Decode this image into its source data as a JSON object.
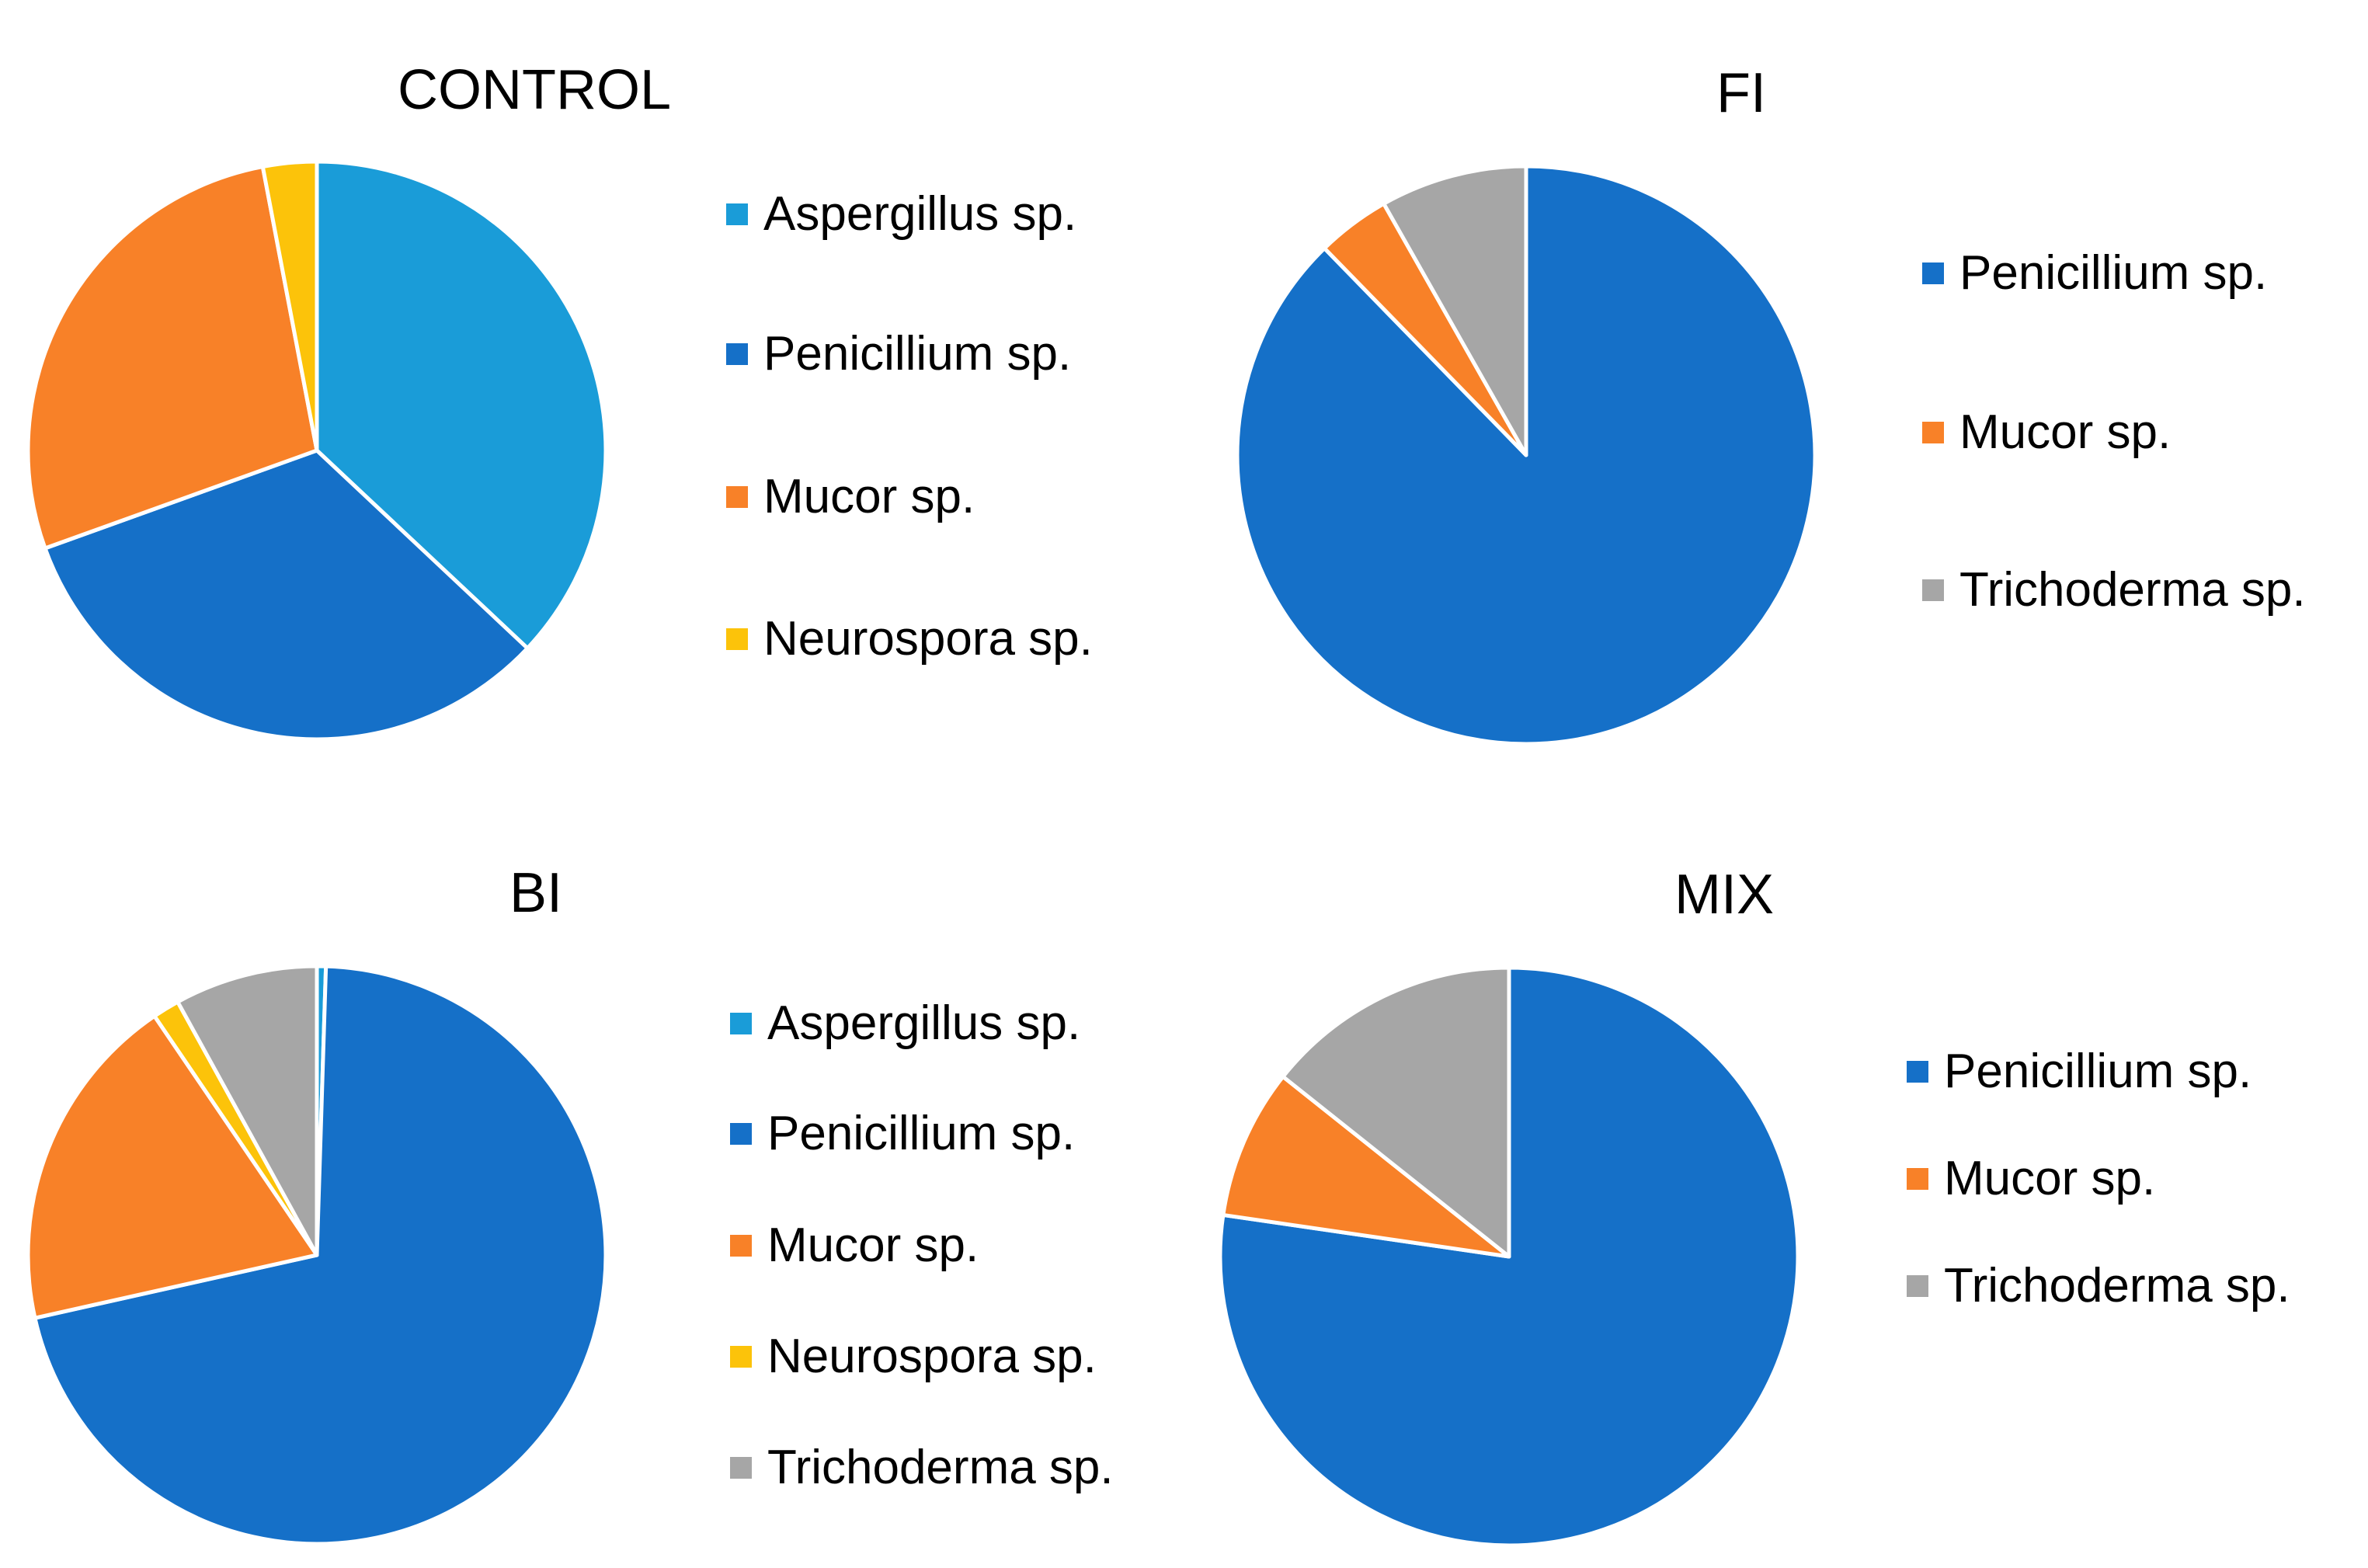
{
  "colors": {
    "aspergillus": "#1a9cd8",
    "penicillium": "#1570c8",
    "mucor": "#f88128",
    "neurospora": "#fcc30a",
    "trichoderma": "#a6a6a6",
    "slice_border": "#ffffff"
  },
  "chart_data": [
    {
      "type": "pie",
      "title": "CONTROL",
      "legend_position": "right",
      "start_angle_deg": 0,
      "direction": "clockwise",
      "slices": [
        {
          "label": "Aspergillus sp.",
          "value": 37.0,
          "color_key": "aspergillus"
        },
        {
          "label": "Penicillium sp.",
          "value": 32.5,
          "color_key": "penicillium"
        },
        {
          "label": "Mucor sp.",
          "value": 27.5,
          "color_key": "mucor"
        },
        {
          "label": "Neurospora sp.",
          "value": 3.0,
          "color_key": "neurospora"
        }
      ]
    },
    {
      "type": "pie",
      "title": "FI",
      "legend_position": "right",
      "start_angle_deg": 0,
      "direction": "clockwise",
      "slices": [
        {
          "label": "Penicillium sp.",
          "value": 87.7,
          "color_key": "penicillium"
        },
        {
          "label": "Mucor sp.",
          "value": 4.1,
          "color_key": "mucor"
        },
        {
          "label": "Trichoderma sp.",
          "value": 8.2,
          "color_key": "trichoderma"
        }
      ]
    },
    {
      "type": "pie",
      "title": "BI",
      "legend_position": "right",
      "start_angle_deg": 0,
      "direction": "clockwise",
      "slices": [
        {
          "label": "Aspergillus sp.",
          "value": 0.5,
          "color_key": "aspergillus"
        },
        {
          "label": "Penicillium sp.",
          "value": 71.0,
          "color_key": "penicillium"
        },
        {
          "label": "Mucor sp.",
          "value": 19.0,
          "color_key": "mucor"
        },
        {
          "label": "Neurospora sp.",
          "value": 1.5,
          "color_key": "neurospora"
        },
        {
          "label": "Trichoderma sp.",
          "value": 8.0,
          "color_key": "trichoderma"
        }
      ]
    },
    {
      "type": "pie",
      "title": "MIX",
      "legend_position": "right",
      "start_angle_deg": 0,
      "direction": "clockwise",
      "slices": [
        {
          "label": "Penicillium sp.",
          "value": 77.3,
          "color_key": "penicillium"
        },
        {
          "label": "Mucor sp.",
          "value": 8.4,
          "color_key": "mucor"
        },
        {
          "label": "Trichoderma sp.",
          "value": 14.3,
          "color_key": "trichoderma"
        }
      ]
    }
  ]
}
